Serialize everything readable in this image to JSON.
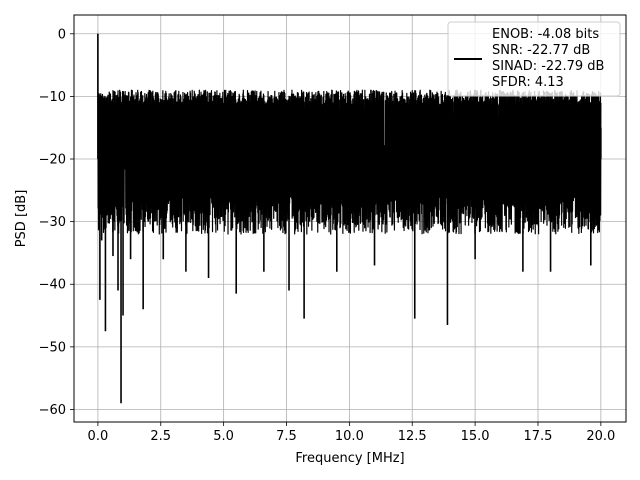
{
  "chart_data": {
    "type": "line",
    "xlabel": "Frequency [MHz]",
    "ylabel": "PSD [dB]",
    "xlim": [
      -0.95,
      21.0
    ],
    "ylim": [
      -62.0,
      3.0
    ],
    "xticks": [
      0.0,
      2.5,
      5.0,
      7.5,
      10.0,
      12.5,
      15.0,
      17.5,
      20.0
    ],
    "xtick_labels": [
      "0.0",
      "2.5",
      "5.0",
      "7.5",
      "10.0",
      "12.5",
      "15.0",
      "17.5",
      "20.0"
    ],
    "yticks": [
      0,
      -10,
      -20,
      -30,
      -40,
      -50,
      -60
    ],
    "ytick_labels": [
      "0",
      "−10",
      "−20",
      "−30",
      "−40",
      "−50",
      "−60"
    ],
    "grid": true,
    "legend_position": "top-right",
    "line_color": "#000000",
    "series": [
      {
        "legend_lines": [
          "ENOB: -4.08 bits",
          "SNR: -22.77 dB",
          "SINAD: -22.79 dB",
          "SFDR: 4.13"
        ],
        "x": [
          0.0,
          0.04,
          0.08,
          0.15,
          0.2,
          0.3,
          0.4,
          0.5,
          0.6,
          0.7,
          0.8,
          0.92,
          1.0,
          1.1,
          1.3,
          1.5,
          1.8,
          2.0,
          2.2,
          2.6,
          3.0,
          3.5,
          4.0,
          4.4,
          5.0,
          5.5,
          6.0,
          6.6,
          7.0,
          7.6,
          8.0,
          8.2,
          9.0,
          9.5,
          10.0,
          11.0,
          12.0,
          12.6,
          13.0,
          13.9,
          14.5,
          15.0,
          16.0,
          16.9,
          17.5,
          18.0,
          18.8,
          19.6,
          20.0
        ],
        "y": [
          0.0,
          -22.0,
          -42.5,
          -33.0,
          -15.0,
          -47.5,
          -12.0,
          -29.0,
          -35.5,
          -18.0,
          -41.0,
          -59.0,
          -45.0,
          -14.0,
          -36.0,
          -23.0,
          -44.0,
          -30.0,
          -13.0,
          -36.0,
          -16.0,
          -38.0,
          -12.0,
          -39.0,
          -15.0,
          -41.5,
          -14.0,
          -38.0,
          -13.0,
          -41.0,
          -17.0,
          -45.5,
          -14.0,
          -38.0,
          -12.0,
          -37.0,
          -16.0,
          -45.5,
          -15.0,
          -46.5,
          -13.0,
          -36.0,
          -12.0,
          -38.0,
          -14.0,
          -38.0,
          -13.0,
          -37.0,
          -15.0
        ]
      }
    ]
  }
}
